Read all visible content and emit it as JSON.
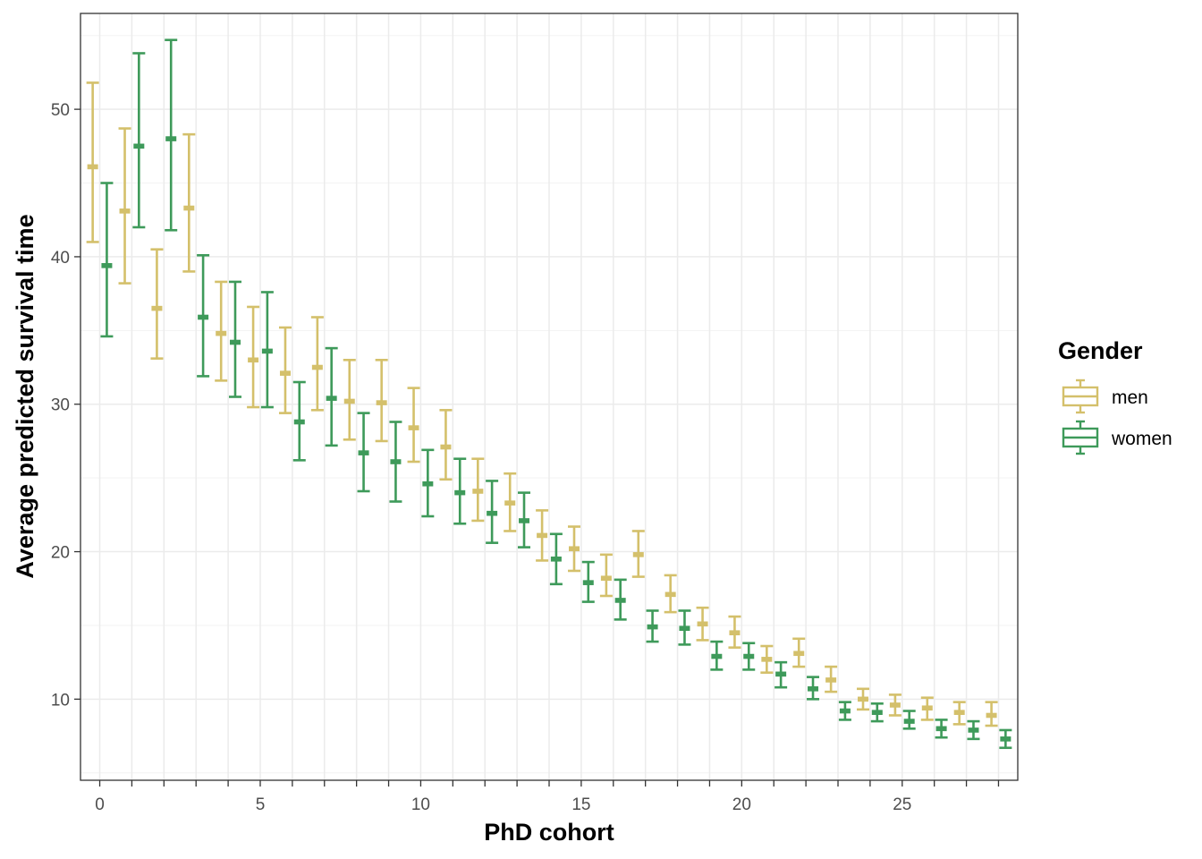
{
  "chart_data": {
    "type": "errorbar",
    "xlabel": "PhD cohort",
    "ylabel": "Average predicted survival time",
    "xlim": [
      -0.6,
      28.6
    ],
    "ylim": [
      4.5,
      56.5
    ],
    "x_ticks": [
      0,
      5,
      10,
      15,
      20,
      25
    ],
    "y_ticks": [
      10,
      20,
      30,
      40,
      50
    ],
    "grid": true,
    "legend": {
      "title": "Gender",
      "position": "right",
      "entries": [
        {
          "label": "men",
          "color": "#D4C06B"
        },
        {
          "label": "women",
          "color": "#3E9A5A"
        }
      ]
    },
    "series": [
      {
        "name": "men",
        "color": "#D4C06B",
        "x": [
          0,
          1,
          2,
          3,
          4,
          5,
          6,
          7,
          8,
          9,
          10,
          11,
          12,
          13,
          14,
          15,
          16,
          17,
          18,
          19,
          20,
          21,
          22,
          23,
          24,
          25,
          26,
          27,
          28
        ],
        "y": [
          46.1,
          43.1,
          36.5,
          43.3,
          34.8,
          33.0,
          32.1,
          32.5,
          30.2,
          30.1,
          28.4,
          27.1,
          24.1,
          23.3,
          21.1,
          20.2,
          18.2,
          19.8,
          17.1,
          15.1,
          14.5,
          12.7,
          13.1,
          11.3,
          10.0,
          9.6,
          9.4,
          9.1,
          8.9
        ],
        "lower": [
          41.0,
          38.2,
          33.1,
          39.0,
          31.6,
          29.8,
          29.4,
          29.6,
          27.6,
          27.5,
          26.1,
          24.9,
          22.1,
          21.4,
          19.4,
          18.7,
          17.0,
          18.3,
          15.9,
          14.0,
          13.5,
          11.8,
          12.2,
          10.5,
          9.3,
          8.9,
          8.6,
          8.3,
          8.2
        ],
        "upper": [
          51.8,
          48.7,
          40.5,
          48.3,
          38.3,
          36.6,
          35.2,
          35.9,
          33.0,
          33.0,
          31.1,
          29.6,
          26.3,
          25.3,
          22.8,
          21.7,
          19.8,
          21.4,
          18.4,
          16.2,
          15.6,
          13.6,
          14.1,
          12.2,
          10.7,
          10.3,
          10.1,
          9.8,
          9.8
        ]
      },
      {
        "name": "women",
        "color": "#3E9A5A",
        "x": [
          0,
          1,
          2,
          3,
          4,
          5,
          6,
          7,
          8,
          9,
          10,
          11,
          12,
          13,
          14,
          15,
          16,
          17,
          18,
          19,
          20,
          21,
          22,
          23,
          24,
          25,
          26,
          27,
          28
        ],
        "y": [
          39.4,
          47.5,
          48.0,
          35.9,
          34.2,
          33.6,
          28.8,
          30.4,
          26.7,
          26.1,
          24.6,
          24.0,
          22.6,
          22.1,
          19.5,
          17.9,
          16.7,
          14.9,
          14.8,
          12.9,
          12.9,
          11.7,
          10.7,
          9.2,
          9.1,
          8.5,
          8.0,
          7.9,
          7.3
        ],
        "lower": [
          34.6,
          42.0,
          41.8,
          31.9,
          30.5,
          29.8,
          26.2,
          27.2,
          24.1,
          23.4,
          22.4,
          21.9,
          20.6,
          20.3,
          17.8,
          16.6,
          15.4,
          13.9,
          13.7,
          12.0,
          12.0,
          10.8,
          10.0,
          8.6,
          8.5,
          8.0,
          7.4,
          7.3,
          6.7
        ],
        "upper": [
          45.0,
          53.8,
          54.7,
          40.1,
          38.3,
          37.6,
          31.5,
          33.8,
          29.4,
          28.8,
          26.9,
          26.3,
          24.8,
          24.0,
          21.2,
          19.3,
          18.1,
          16.0,
          16.0,
          13.9,
          13.8,
          12.5,
          11.5,
          9.8,
          9.7,
          9.2,
          8.6,
          8.5,
          7.9
        ]
      }
    ]
  }
}
